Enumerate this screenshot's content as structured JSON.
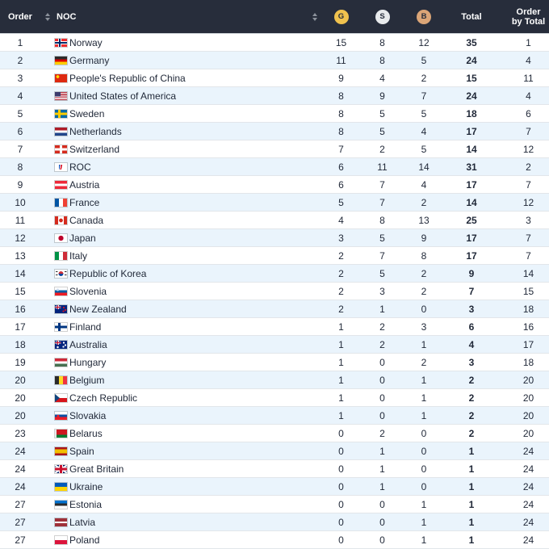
{
  "header": {
    "order_label": "Order",
    "noc_label": "NOC",
    "gold_label": "G",
    "silver_label": "S",
    "bronze_label": "B",
    "total_label": "Total",
    "order_by_total_label": "Order by Total",
    "background_color": "#272d3b",
    "gold_color": "#f0c24e",
    "silver_color": "#e8eaec",
    "bronze_color": "#dba577"
  },
  "table": {
    "alt_row_color": "#eaf4fc",
    "rows": [
      {
        "order": "1",
        "noc": "Norway",
        "flag": "nor",
        "gold": "15",
        "silver": "8",
        "bronze": "12",
        "total": "35",
        "order_by_total": "1"
      },
      {
        "order": "2",
        "noc": "Germany",
        "flag": "ger",
        "gold": "11",
        "silver": "8",
        "bronze": "5",
        "total": "24",
        "order_by_total": "4"
      },
      {
        "order": "3",
        "noc": "People's Republic of China",
        "flag": "chn",
        "gold": "9",
        "silver": "4",
        "bronze": "2",
        "total": "15",
        "order_by_total": "11"
      },
      {
        "order": "4",
        "noc": "United States of America",
        "flag": "usa",
        "gold": "8",
        "silver": "9",
        "bronze": "7",
        "total": "24",
        "order_by_total": "4"
      },
      {
        "order": "5",
        "noc": "Sweden",
        "flag": "swe",
        "gold": "8",
        "silver": "5",
        "bronze": "5",
        "total": "18",
        "order_by_total": "6"
      },
      {
        "order": "6",
        "noc": "Netherlands",
        "flag": "ned",
        "gold": "8",
        "silver": "5",
        "bronze": "4",
        "total": "17",
        "order_by_total": "7"
      },
      {
        "order": "7",
        "noc": "Switzerland",
        "flag": "sui",
        "gold": "7",
        "silver": "2",
        "bronze": "5",
        "total": "14",
        "order_by_total": "12"
      },
      {
        "order": "8",
        "noc": "ROC",
        "flag": "roc",
        "gold": "6",
        "silver": "11",
        "bronze": "14",
        "total": "31",
        "order_by_total": "2"
      },
      {
        "order": "9",
        "noc": "Austria",
        "flag": "aut",
        "gold": "6",
        "silver": "7",
        "bronze": "4",
        "total": "17",
        "order_by_total": "7"
      },
      {
        "order": "10",
        "noc": "France",
        "flag": "fra",
        "gold": "5",
        "silver": "7",
        "bronze": "2",
        "total": "14",
        "order_by_total": "12"
      },
      {
        "order": "11",
        "noc": "Canada",
        "flag": "can",
        "gold": "4",
        "silver": "8",
        "bronze": "13",
        "total": "25",
        "order_by_total": "3"
      },
      {
        "order": "12",
        "noc": "Japan",
        "flag": "jpn",
        "gold": "3",
        "silver": "5",
        "bronze": "9",
        "total": "17",
        "order_by_total": "7"
      },
      {
        "order": "13",
        "noc": "Italy",
        "flag": "ita",
        "gold": "2",
        "silver": "7",
        "bronze": "8",
        "total": "17",
        "order_by_total": "7"
      },
      {
        "order": "14",
        "noc": "Republic of Korea",
        "flag": "kor",
        "gold": "2",
        "silver": "5",
        "bronze": "2",
        "total": "9",
        "order_by_total": "14"
      },
      {
        "order": "15",
        "noc": "Slovenia",
        "flag": "slo",
        "gold": "2",
        "silver": "3",
        "bronze": "2",
        "total": "7",
        "order_by_total": "15"
      },
      {
        "order": "16",
        "noc": "New Zealand",
        "flag": "nzl",
        "gold": "2",
        "silver": "1",
        "bronze": "0",
        "total": "3",
        "order_by_total": "18"
      },
      {
        "order": "17",
        "noc": "Finland",
        "flag": "fin",
        "gold": "1",
        "silver": "2",
        "bronze": "3",
        "total": "6",
        "order_by_total": "16"
      },
      {
        "order": "18",
        "noc": "Australia",
        "flag": "aus",
        "gold": "1",
        "silver": "2",
        "bronze": "1",
        "total": "4",
        "order_by_total": "17"
      },
      {
        "order": "19",
        "noc": "Hungary",
        "flag": "hun",
        "gold": "1",
        "silver": "0",
        "bronze": "2",
        "total": "3",
        "order_by_total": "18"
      },
      {
        "order": "20",
        "noc": "Belgium",
        "flag": "bel",
        "gold": "1",
        "silver": "0",
        "bronze": "1",
        "total": "2",
        "order_by_total": "20"
      },
      {
        "order": "20",
        "noc": "Czech Republic",
        "flag": "cze",
        "gold": "1",
        "silver": "0",
        "bronze": "1",
        "total": "2",
        "order_by_total": "20"
      },
      {
        "order": "20",
        "noc": "Slovakia",
        "flag": "svk",
        "gold": "1",
        "silver": "0",
        "bronze": "1",
        "total": "2",
        "order_by_total": "20"
      },
      {
        "order": "23",
        "noc": "Belarus",
        "flag": "blr",
        "gold": "0",
        "silver": "2",
        "bronze": "0",
        "total": "2",
        "order_by_total": "20"
      },
      {
        "order": "24",
        "noc": "Spain",
        "flag": "esp",
        "gold": "0",
        "silver": "1",
        "bronze": "0",
        "total": "1",
        "order_by_total": "24"
      },
      {
        "order": "24",
        "noc": "Great Britain",
        "flag": "gbr",
        "gold": "0",
        "silver": "1",
        "bronze": "0",
        "total": "1",
        "order_by_total": "24"
      },
      {
        "order": "24",
        "noc": "Ukraine",
        "flag": "ukr",
        "gold": "0",
        "silver": "1",
        "bronze": "0",
        "total": "1",
        "order_by_total": "24"
      },
      {
        "order": "27",
        "noc": "Estonia",
        "flag": "est",
        "gold": "0",
        "silver": "0",
        "bronze": "1",
        "total": "1",
        "order_by_total": "24"
      },
      {
        "order": "27",
        "noc": "Latvia",
        "flag": "lva",
        "gold": "0",
        "silver": "0",
        "bronze": "1",
        "total": "1",
        "order_by_total": "24"
      },
      {
        "order": "27",
        "noc": "Poland",
        "flag": "pol",
        "gold": "0",
        "silver": "0",
        "bronze": "1",
        "total": "1",
        "order_by_total": "24"
      }
    ]
  }
}
